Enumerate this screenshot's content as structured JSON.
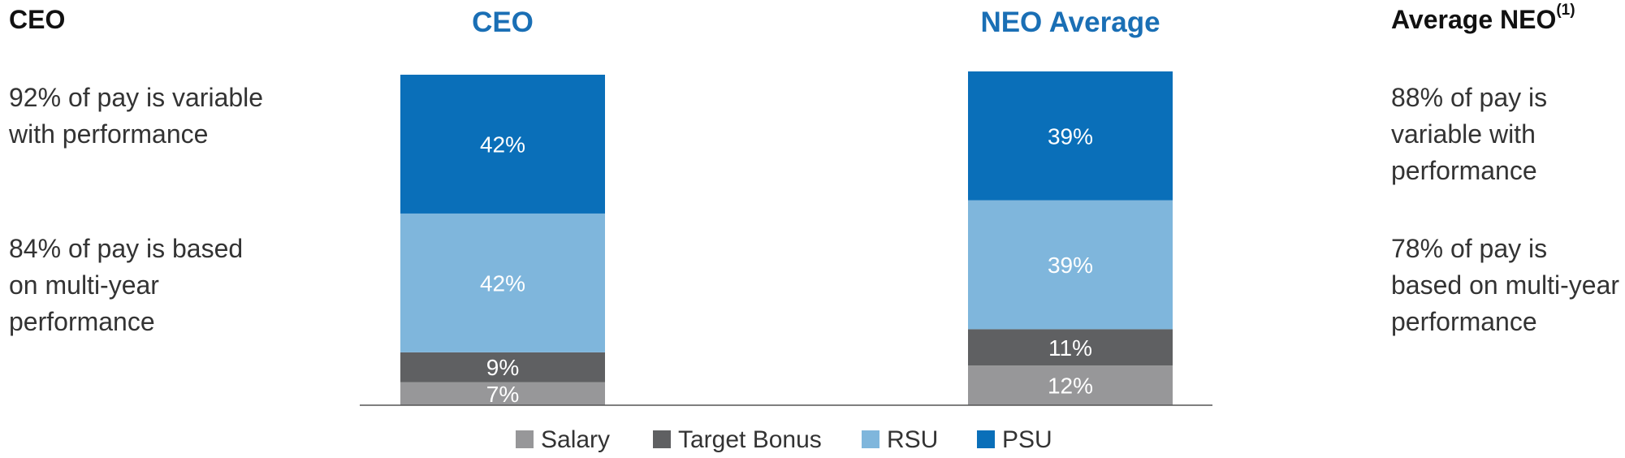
{
  "left_panel": {
    "heading": "CEO",
    "point1": "92% of pay is variable with performance",
    "point2": "84% of pay is based on multi-year performance"
  },
  "right_panel": {
    "heading": "Average NEO",
    "heading_sup": "(1)",
    "point1": "88% of pay is variable with performance",
    "point2": "78% of pay is based on multi-year performance"
  },
  "colors": {
    "title": "#1a6fb5",
    "Salary": "#979799",
    "Target Bonus": "#5f6062",
    "RSU": "#7fb6dc",
    "PSU": "#0a6fb9",
    "axis": "#555555"
  },
  "chart_data": {
    "type": "bar",
    "stacked": true,
    "orientation": "vertical",
    "categories": [
      "CEO",
      "NEO Average"
    ],
    "series": [
      {
        "name": "Salary",
        "values": [
          7,
          12
        ],
        "labels": [
          "7%",
          "12%"
        ]
      },
      {
        "name": "Target Bonus",
        "values": [
          9,
          11
        ],
        "labels": [
          "9%",
          "11%"
        ]
      },
      {
        "name": "RSU",
        "values": [
          42,
          39
        ],
        "labels": [
          "42%",
          "39%"
        ]
      },
      {
        "name": "PSU",
        "values": [
          42,
          39
        ],
        "labels": [
          "42%",
          "39%"
        ]
      }
    ],
    "ylim": [
      0,
      100
    ],
    "legend": [
      "Salary",
      "Target Bonus",
      "RSU",
      "PSU"
    ],
    "legend_position": "bottom",
    "grid": false
  }
}
